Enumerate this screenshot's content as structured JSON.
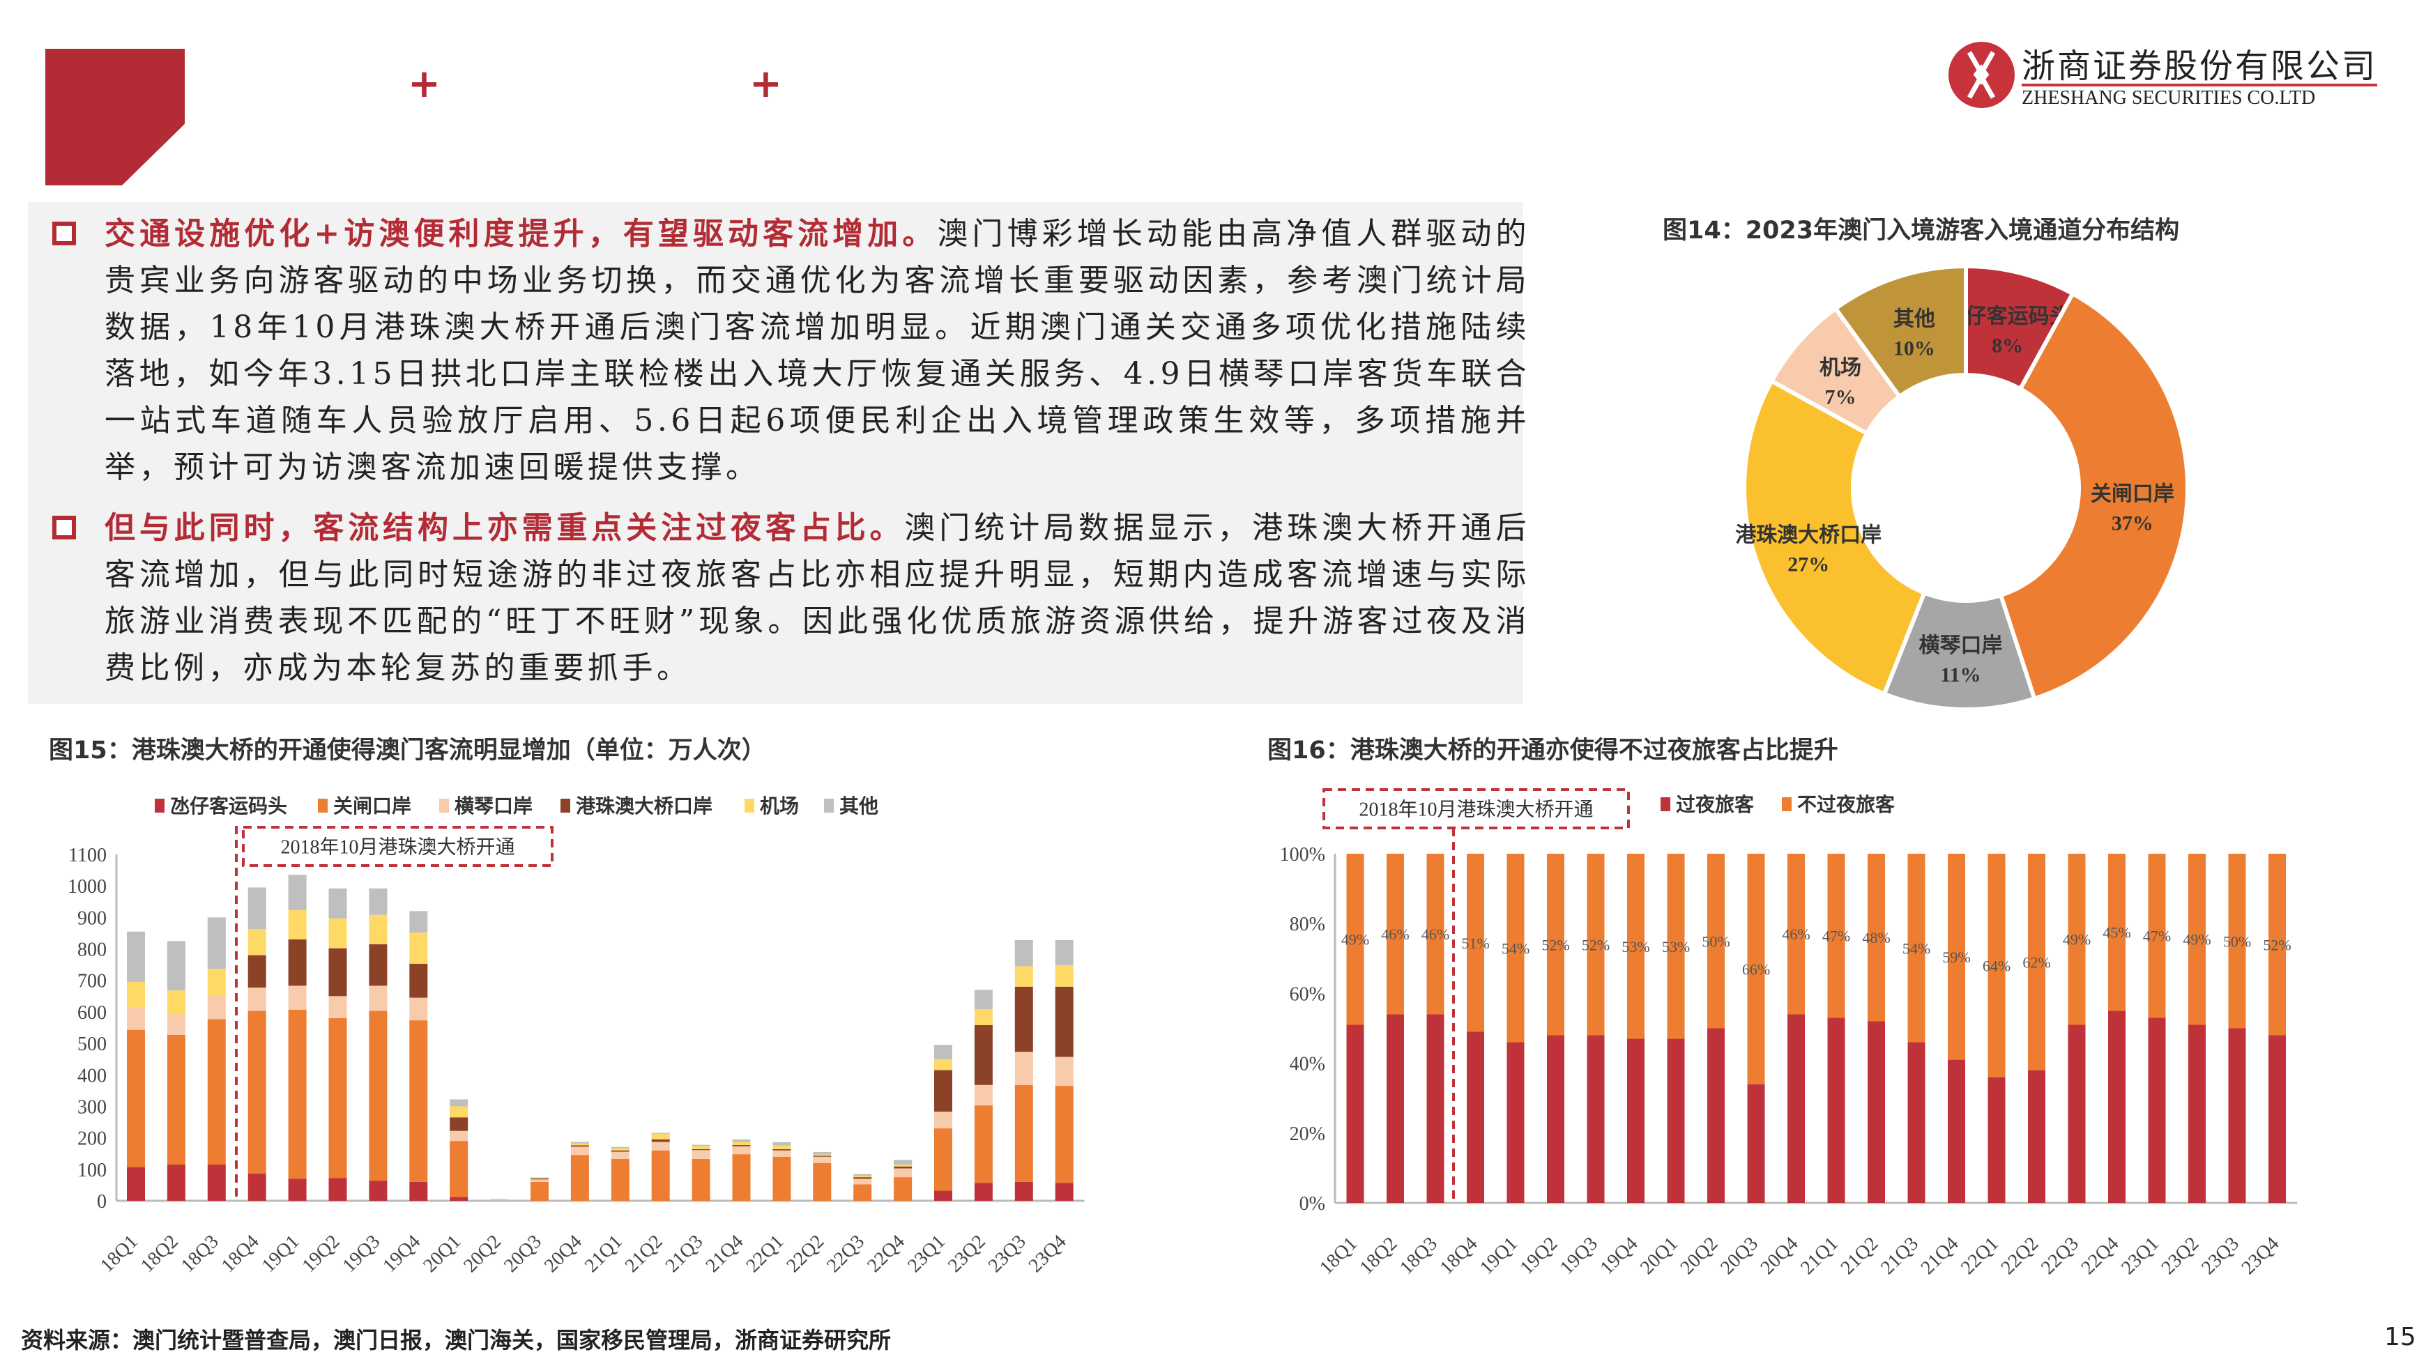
{
  "header": {
    "plus_icon": "+",
    "logo": {
      "name_cn": "浙商证券股份有限公司",
      "name_en": "ZHESHANG SECURITIES CO.LTD",
      "brand_color": "#C8323A"
    }
  },
  "text_block": {
    "paragraphs": [
      {
        "heading": "交通设施优化+访澳便利度提升，有望驱动客流增加。",
        "body": "澳门博彩增长动能由高净值人群驱动的贵宾业务向游客驱动的中场业务切换，而交通优化为客流增长重要驱动因素，参考澳门统计局数据，18年10月港珠澳大桥开通后澳门客流增加明显。近期澳门通关交通多项优化措施陆续落地，如今年3.15日拱北口岸主联检楼出入境大厅恢复通关服务、4.9日横琴口岸客货车联合一站式车道随车人员验放厅启用、5.6日起6项便民利企出入境管理政策生效等，多项措施并举，预计可为访澳客流加速回暖提供支撑。"
      },
      {
        "heading": "但与此同时，客流结构上亦需重点关注过夜客占比。",
        "body": "澳门统计局数据显示，港珠澳大桥开通后客流增加，但与此同时短途游的非过夜旅客占比亦相应提升明显，短期内造成客流增速与实际旅游业消费表现不匹配的“旺丁不旺财”现象。因此强化优质旅游资源供给，提升游客过夜及消费比例，亦成为本轮复苏的重要抓手。"
      }
    ]
  },
  "chart_data": [
    {
      "type": "pie",
      "title": "图14：2023年澳门入境游客入境通道分布结构",
      "donut": true,
      "slices": [
        {
          "name": "氹仔客运码头",
          "value": 8,
          "label": "8%",
          "color": "#C0323A"
        },
        {
          "name": "关闸口岸",
          "value": 37,
          "label": "37%",
          "color": "#ED7D31"
        },
        {
          "name": "横琴口岸",
          "value": 11,
          "label": "11%",
          "color": "#A6A6A6"
        },
        {
          "name": "港珠澳大桥口岸",
          "value": 27,
          "label": "27%",
          "color": "#FBC02D"
        },
        {
          "name": "机场",
          "value": 7,
          "label": "7%",
          "color": "#F8CBAD"
        },
        {
          "name": "其他",
          "value": 10,
          "label": "10%",
          "color": "#C09438"
        }
      ]
    },
    {
      "type": "bar",
      "stacked": true,
      "title": "图15：港珠澳大桥的开通使得澳门客流明显增加（单位：万人次）",
      "annotation": "2018年10月港珠澳大桥开通",
      "ylim": [
        0,
        1100
      ],
      "yticks": [
        0,
        100,
        200,
        300,
        400,
        500,
        600,
        700,
        800,
        900,
        1000,
        1100
      ],
      "legend": "top",
      "categories": [
        "18Q1",
        "18Q2",
        "18Q3",
        "18Q4",
        "19Q1",
        "19Q2",
        "19Q3",
        "19Q4",
        "20Q1",
        "20Q2",
        "20Q3",
        "20Q4",
        "21Q1",
        "21Q2",
        "21Q3",
        "21Q4",
        "22Q1",
        "22Q2",
        "22Q3",
        "22Q4",
        "23Q1",
        "23Q2",
        "23Q3",
        "23Q4"
      ],
      "series": [
        {
          "name": "氹仔客运码头",
          "color": "#C0323A",
          "values": [
            107,
            115,
            115,
            87,
            70,
            72,
            64,
            60,
            12,
            0,
            0,
            0,
            0,
            0,
            0,
            0,
            0,
            0,
            0,
            0,
            32,
            57,
            60,
            57
          ]
        },
        {
          "name": "关闸口岸",
          "color": "#ED7D31",
          "values": [
            436,
            412,
            462,
            516,
            537,
            508,
            539,
            513,
            178,
            0,
            60,
            145,
            133,
            160,
            133,
            148,
            140,
            120,
            52,
            75,
            198,
            246,
            308,
            308
          ]
        },
        {
          "name": "横琴口岸",
          "color": "#F8CBAD",
          "values": [
            70,
            65,
            75,
            74,
            76,
            70,
            80,
            72,
            32,
            0,
            8,
            27,
            23,
            27,
            28,
            25,
            20,
            20,
            18,
            28,
            53,
            65,
            105,
            92
          ]
        },
        {
          "name": "港珠澳大桥口岸",
          "color": "#8B4226",
          "values": [
            0,
            0,
            0,
            103,
            147,
            152,
            132,
            108,
            43,
            0,
            3,
            4,
            4,
            8,
            3,
            4,
            4,
            3,
            5,
            6,
            132,
            190,
            207,
            223
          ]
        },
        {
          "name": "机场",
          "color": "#FFD966",
          "values": [
            82,
            76,
            85,
            83,
            93,
            95,
            93,
            99,
            35,
            0,
            1,
            6,
            7,
            18,
            10,
            10,
            12,
            4,
            4,
            6,
            35,
            50,
            65,
            68
          ]
        },
        {
          "name": "其他",
          "color": "#BFBFBF",
          "values": [
            160,
            157,
            163,
            132,
            112,
            95,
            84,
            68,
            22,
            5,
            2,
            5,
            4,
            3,
            4,
            8,
            10,
            8,
            6,
            15,
            45,
            62,
            83,
            80
          ]
        }
      ]
    },
    {
      "type": "bar",
      "stacked": true,
      "percent": true,
      "title": "图16：港珠澳大桥的开通亦使得不过夜旅客占比提升",
      "annotation": "2018年10月港珠澳大桥开通",
      "ylim": [
        0,
        100
      ],
      "yticks": [
        "0%",
        "20%",
        "40%",
        "60%",
        "80%",
        "100%"
      ],
      "legend": "top",
      "categories": [
        "18Q1",
        "18Q2",
        "18Q3",
        "18Q4",
        "19Q1",
        "19Q2",
        "19Q3",
        "19Q4",
        "20Q1",
        "20Q2",
        "20Q3",
        "20Q4",
        "21Q1",
        "21Q2",
        "21Q3",
        "21Q4",
        "22Q1",
        "22Q2",
        "22Q3",
        "22Q4",
        "23Q1",
        "23Q2",
        "23Q3",
        "23Q4"
      ],
      "series": [
        {
          "name": "过夜旅客",
          "color": "#C0323A",
          "values": [
            51,
            54,
            54,
            49,
            46,
            48,
            48,
            47,
            47,
            50,
            34,
            54,
            53,
            52,
            46,
            41,
            36,
            38,
            51,
            55,
            53,
            51,
            50,
            48
          ]
        },
        {
          "name": "不过夜旅客",
          "color": "#ED7D31",
          "values": [
            49,
            46,
            46,
            51,
            54,
            52,
            52,
            53,
            53,
            50,
            66,
            46,
            47,
            48,
            54,
            59,
            64,
            62,
            49,
            45,
            47,
            49,
            50,
            52
          ],
          "labels": [
            "49%",
            "46%",
            "46%",
            "51%",
            "54%",
            "52%",
            "52%",
            "53%",
            "53%",
            "50%",
            "66%",
            "46%",
            "47%",
            "48%",
            "54%",
            "59%",
            "64%",
            "62%",
            "49%",
            "45%",
            "47%",
            "49%",
            "50%",
            "52%"
          ]
        }
      ]
    }
  ],
  "footer": {
    "source": "资料来源：澳门统计暨普查局，澳门日报，澳门海关，国家移民管理局，浙商证券研究所",
    "page": "15"
  }
}
